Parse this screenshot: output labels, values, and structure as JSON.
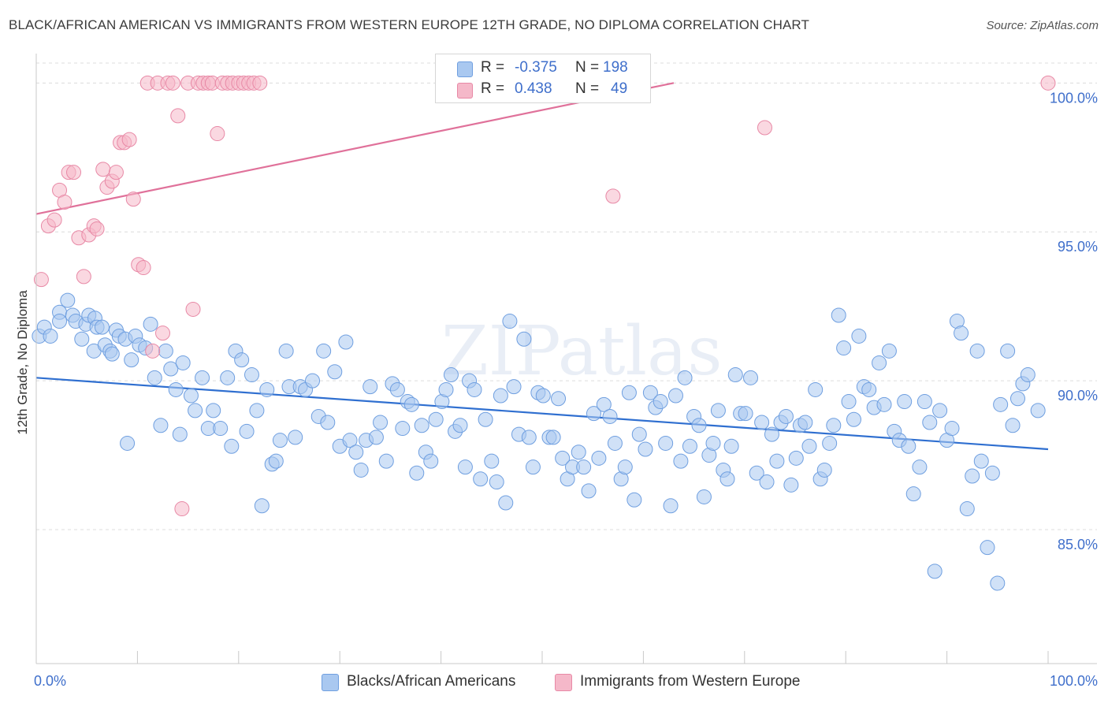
{
  "header": {
    "title": "BLACK/AFRICAN AMERICAN VS IMMIGRANTS FROM WESTERN EUROPE 12TH GRADE, NO DIPLOMA CORRELATION CHART",
    "source": "Source: ZipAtlas.com"
  },
  "watermark": "ZIPatlas",
  "legend_top": {
    "rows": [
      {
        "r_label": "R =",
        "r_value": "-0.375",
        "n_label": "N =",
        "n_value": "198",
        "color": "#a9c8f0"
      },
      {
        "r_label": "R =",
        "r_value": "0.438",
        "n_label": "N =",
        "n_value": "49",
        "color": "#f5b8c9"
      }
    ]
  },
  "chart_data": {
    "type": "scatter",
    "ylabel": "12th Grade, No Diploma",
    "xlim": [
      0,
      100
    ],
    "ylim": [
      80.5,
      101.2
    ],
    "x_tick_labels": [
      "0.0%",
      "100.0%"
    ],
    "y_ticks": [
      85,
      90,
      95,
      100
    ],
    "y_tick_labels": [
      "85.0%",
      "90.0%",
      "95.0%",
      "100.0%"
    ],
    "grid": true,
    "legend_placement": "top-center",
    "series": [
      {
        "name": "Blacks/African Americans",
        "color": "#a9c8f0",
        "stroke": "#6f9fe0",
        "trend_color": "#2f6fd0",
        "trend": [
          [
            0,
            90.1
          ],
          [
            100,
            87.7
          ]
        ],
        "points": [
          [
            0.3,
            91.5
          ],
          [
            0.8,
            91.8
          ],
          [
            1.4,
            91.5
          ],
          [
            2.3,
            92.3
          ],
          [
            2.3,
            92.0
          ],
          [
            3.1,
            92.7
          ],
          [
            3.6,
            92.2
          ],
          [
            3.9,
            92.0
          ],
          [
            4.5,
            91.4
          ],
          [
            4.9,
            91.9
          ],
          [
            5.2,
            92.2
          ],
          [
            5.8,
            92.1
          ],
          [
            6.0,
            91.8
          ],
          [
            5.7,
            91.0
          ],
          [
            6.5,
            91.8
          ],
          [
            6.8,
            91.2
          ],
          [
            7.3,
            91.0
          ],
          [
            7.5,
            90.9
          ],
          [
            7.9,
            91.7
          ],
          [
            8.2,
            91.5
          ],
          [
            8.8,
            91.4
          ],
          [
            9.0,
            87.9
          ],
          [
            9.4,
            90.7
          ],
          [
            9.8,
            91.5
          ],
          [
            10.2,
            91.2
          ],
          [
            10.8,
            91.1
          ],
          [
            11.3,
            91.9
          ],
          [
            11.7,
            90.1
          ],
          [
            12.3,
            88.5
          ],
          [
            12.8,
            91.0
          ],
          [
            13.3,
            90.4
          ],
          [
            13.8,
            89.7
          ],
          [
            14.2,
            88.2
          ],
          [
            14.5,
            90.6
          ],
          [
            15.3,
            89.5
          ],
          [
            15.7,
            89.0
          ],
          [
            16.4,
            90.1
          ],
          [
            17.0,
            88.4
          ],
          [
            17.5,
            89.0
          ],
          [
            18.2,
            88.4
          ],
          [
            18.9,
            90.1
          ],
          [
            19.3,
            87.8
          ],
          [
            19.7,
            91.0
          ],
          [
            20.3,
            90.7
          ],
          [
            20.8,
            88.3
          ],
          [
            21.3,
            90.2
          ],
          [
            21.8,
            89.0
          ],
          [
            22.3,
            85.8
          ],
          [
            22.8,
            89.7
          ],
          [
            23.3,
            87.2
          ],
          [
            23.7,
            87.3
          ],
          [
            24.1,
            88.0
          ],
          [
            24.7,
            91.0
          ],
          [
            25.0,
            89.8
          ],
          [
            25.6,
            88.1
          ],
          [
            26.1,
            89.8
          ],
          [
            26.6,
            89.7
          ],
          [
            27.3,
            90.0
          ],
          [
            27.9,
            88.8
          ],
          [
            28.4,
            91.0
          ],
          [
            28.8,
            88.6
          ],
          [
            29.5,
            90.3
          ],
          [
            30.0,
            87.8
          ],
          [
            30.6,
            91.3
          ],
          [
            31.0,
            88.0
          ],
          [
            31.6,
            87.6
          ],
          [
            32.1,
            87.0
          ],
          [
            32.6,
            88.0
          ],
          [
            33.0,
            89.8
          ],
          [
            33.6,
            88.1
          ],
          [
            34.0,
            88.6
          ],
          [
            34.6,
            87.3
          ],
          [
            35.2,
            89.9
          ],
          [
            35.7,
            89.7
          ],
          [
            36.2,
            88.4
          ],
          [
            36.7,
            89.3
          ],
          [
            37.1,
            89.2
          ],
          [
            37.6,
            86.9
          ],
          [
            38.1,
            88.5
          ],
          [
            38.5,
            87.6
          ],
          [
            39.0,
            87.3
          ],
          [
            39.5,
            88.7
          ],
          [
            40.1,
            89.3
          ],
          [
            40.5,
            89.7
          ],
          [
            41.0,
            90.2
          ],
          [
            41.4,
            88.3
          ],
          [
            41.9,
            88.5
          ],
          [
            42.4,
            87.1
          ],
          [
            42.8,
            90.0
          ],
          [
            43.3,
            89.7
          ],
          [
            43.9,
            86.7
          ],
          [
            44.4,
            88.7
          ],
          [
            45.0,
            87.3
          ],
          [
            45.5,
            86.6
          ],
          [
            45.9,
            89.5
          ],
          [
            46.4,
            85.9
          ],
          [
            46.8,
            92.0
          ],
          [
            47.2,
            89.8
          ],
          [
            47.7,
            88.2
          ],
          [
            48.2,
            91.4
          ],
          [
            48.7,
            88.1
          ],
          [
            49.1,
            87.1
          ],
          [
            49.6,
            89.6
          ],
          [
            50.1,
            89.5
          ],
          [
            50.7,
            88.1
          ],
          [
            51.1,
            88.1
          ],
          [
            51.6,
            89.4
          ],
          [
            52.0,
            87.4
          ],
          [
            52.5,
            86.7
          ],
          [
            53.0,
            87.1
          ],
          [
            53.6,
            87.6
          ],
          [
            54.1,
            87.1
          ],
          [
            54.6,
            86.3
          ],
          [
            55.1,
            88.9
          ],
          [
            55.6,
            87.4
          ],
          [
            56.1,
            89.2
          ],
          [
            56.7,
            88.8
          ],
          [
            57.2,
            87.9
          ],
          [
            57.8,
            86.7
          ],
          [
            58.2,
            87.1
          ],
          [
            58.6,
            89.6
          ],
          [
            59.1,
            86.0
          ],
          [
            59.6,
            88.2
          ],
          [
            60.2,
            87.7
          ],
          [
            60.7,
            89.6
          ],
          [
            61.2,
            89.1
          ],
          [
            61.7,
            89.3
          ],
          [
            62.2,
            87.9
          ],
          [
            62.7,
            85.8
          ],
          [
            63.2,
            89.5
          ],
          [
            63.7,
            87.3
          ],
          [
            64.1,
            90.1
          ],
          [
            64.6,
            87.8
          ],
          [
            65.0,
            88.8
          ],
          [
            65.5,
            88.5
          ],
          [
            66.0,
            86.1
          ],
          [
            66.5,
            87.5
          ],
          [
            66.9,
            87.9
          ],
          [
            67.4,
            89.0
          ],
          [
            67.9,
            87.0
          ],
          [
            68.3,
            86.7
          ],
          [
            68.7,
            87.8
          ],
          [
            69.1,
            90.2
          ],
          [
            69.6,
            88.9
          ],
          [
            70.1,
            88.9
          ],
          [
            70.6,
            90.1
          ],
          [
            71.2,
            86.9
          ],
          [
            71.7,
            88.6
          ],
          [
            72.2,
            86.6
          ],
          [
            72.7,
            88.2
          ],
          [
            73.2,
            87.3
          ],
          [
            73.6,
            88.6
          ],
          [
            74.1,
            88.8
          ],
          [
            74.6,
            86.5
          ],
          [
            75.1,
            87.4
          ],
          [
            75.5,
            88.5
          ],
          [
            76.0,
            88.6
          ],
          [
            76.4,
            87.8
          ],
          [
            77.0,
            89.7
          ],
          [
            77.5,
            86.7
          ],
          [
            77.9,
            87.0
          ],
          [
            78.4,
            87.9
          ],
          [
            78.8,
            88.5
          ],
          [
            79.3,
            92.2
          ],
          [
            79.8,
            91.1
          ],
          [
            80.3,
            89.3
          ],
          [
            80.8,
            88.7
          ],
          [
            81.3,
            91.5
          ],
          [
            81.8,
            89.8
          ],
          [
            82.3,
            89.7
          ],
          [
            82.8,
            89.1
          ],
          [
            83.3,
            90.6
          ],
          [
            83.8,
            89.2
          ],
          [
            84.3,
            91.0
          ],
          [
            84.8,
            88.3
          ],
          [
            85.3,
            88.0
          ],
          [
            85.8,
            89.3
          ],
          [
            86.2,
            87.8
          ],
          [
            86.7,
            86.2
          ],
          [
            87.3,
            87.1
          ],
          [
            87.8,
            89.3
          ],
          [
            88.3,
            88.6
          ],
          [
            88.8,
            83.6
          ],
          [
            89.3,
            89.0
          ],
          [
            90.0,
            88.0
          ],
          [
            90.5,
            88.4
          ],
          [
            91.0,
            92.0
          ],
          [
            91.4,
            91.6
          ],
          [
            92.0,
            85.7
          ],
          [
            92.5,
            86.8
          ],
          [
            93.0,
            91.0
          ],
          [
            93.4,
            87.3
          ],
          [
            94.0,
            84.4
          ],
          [
            94.5,
            86.9
          ],
          [
            95.0,
            83.2
          ],
          [
            95.3,
            89.2
          ],
          [
            96.0,
            91.0
          ],
          [
            96.5,
            88.5
          ],
          [
            97.0,
            89.4
          ],
          [
            97.5,
            89.9
          ],
          [
            98.0,
            90.2
          ],
          [
            99.0,
            89.0
          ]
        ]
      },
      {
        "name": "Immigrants from Western Europe",
        "color": "#f5b8c9",
        "stroke": "#e889a6",
        "trend_color": "#e0719a",
        "trend": [
          [
            0,
            95.6
          ],
          [
            63,
            100.0
          ]
        ],
        "points": [
          [
            0.5,
            93.4
          ],
          [
            1.2,
            95.2
          ],
          [
            1.8,
            95.4
          ],
          [
            2.3,
            96.4
          ],
          [
            2.8,
            96.0
          ],
          [
            3.2,
            97.0
          ],
          [
            3.7,
            97.0
          ],
          [
            4.2,
            94.8
          ],
          [
            4.7,
            93.5
          ],
          [
            5.2,
            94.9
          ],
          [
            5.7,
            95.2
          ],
          [
            6.0,
            95.1
          ],
          [
            6.6,
            97.1
          ],
          [
            7.0,
            96.5
          ],
          [
            7.5,
            96.7
          ],
          [
            7.9,
            97.0
          ],
          [
            8.3,
            98.0
          ],
          [
            8.7,
            98.0
          ],
          [
            9.2,
            98.1
          ],
          [
            9.6,
            96.1
          ],
          [
            10.1,
            93.9
          ],
          [
            10.6,
            93.8
          ],
          [
            11.0,
            100.0
          ],
          [
            11.5,
            91.0
          ],
          [
            12.0,
            100.0
          ],
          [
            12.5,
            91.6
          ],
          [
            13.0,
            100.0
          ],
          [
            13.5,
            100.0
          ],
          [
            14.0,
            98.9
          ],
          [
            14.4,
            85.7
          ],
          [
            15.0,
            100.0
          ],
          [
            15.5,
            92.4
          ],
          [
            16.0,
            100.0
          ],
          [
            16.5,
            100.0
          ],
          [
            17.0,
            100.0
          ],
          [
            17.4,
            100.0
          ],
          [
            17.9,
            98.3
          ],
          [
            18.4,
            100.0
          ],
          [
            18.9,
            100.0
          ],
          [
            19.4,
            100.0
          ],
          [
            20.0,
            100.0
          ],
          [
            20.5,
            100.0
          ],
          [
            21.0,
            100.0
          ],
          [
            21.5,
            100.0
          ],
          [
            22.1,
            100.0
          ],
          [
            47.0,
            100.0
          ],
          [
            57.0,
            96.2
          ],
          [
            72.0,
            98.5
          ],
          [
            100.0,
            100.0
          ]
        ]
      }
    ]
  },
  "legend_bottom": {
    "items": [
      {
        "label": "Blacks/African Americans",
        "color": "#a9c8f0"
      },
      {
        "label": "Immigrants from Western Europe",
        "color": "#f5b8c9"
      }
    ]
  }
}
